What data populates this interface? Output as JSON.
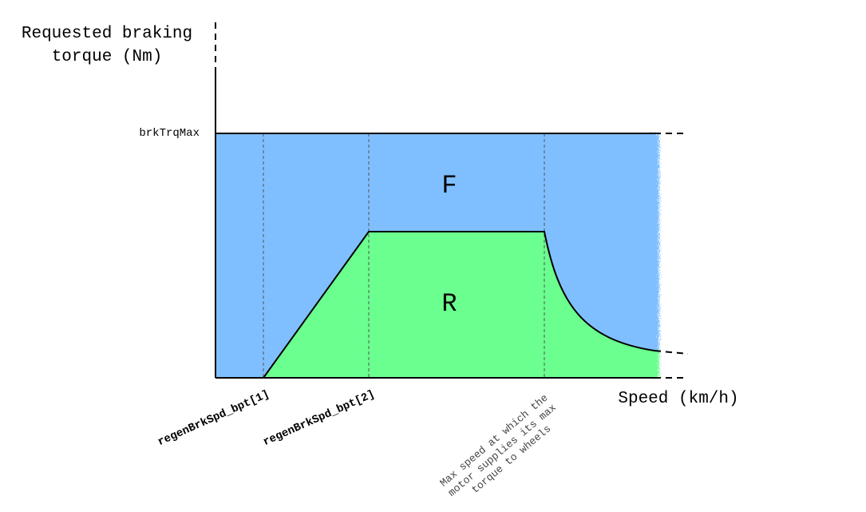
{
  "axes": {
    "y_title_line1": "Requested braking",
    "y_title_line2": "torque (Nm)",
    "x_title": "Speed (km/h)"
  },
  "labels": {
    "brk_trq_max": "brkTrqMax",
    "bpt1": "regenBrkSpd_bpt[1]",
    "bpt2": "regenBrkSpd_bpt[2]",
    "max_speed_line1": "Max speed at which the",
    "max_speed_line2": "motor supplies its max",
    "max_speed_line3": "torque to wheels"
  },
  "regions": {
    "friction": "F",
    "regen": "R"
  },
  "colors": {
    "friction_fill": "#80bfff",
    "regen_fill": "#6aff8f",
    "axis": "#000000",
    "guide": "#555555"
  }
}
